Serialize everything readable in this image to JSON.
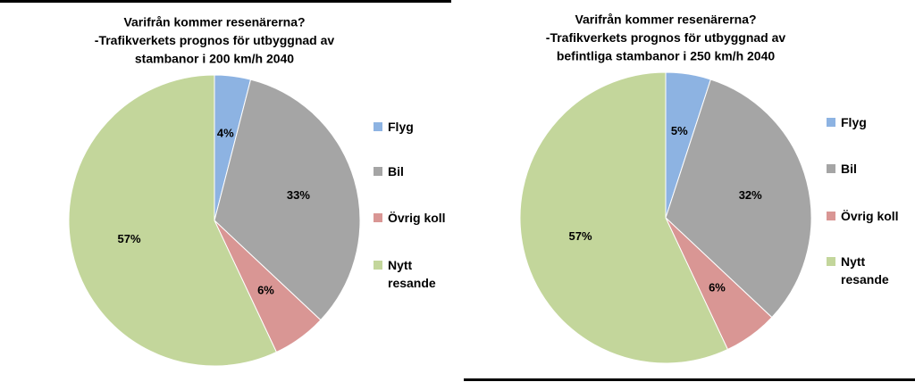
{
  "chart_data": [
    {
      "type": "pie",
      "title": [
        "Varifrån kommer resenärerna?",
        "-Trafikverkets prognos för utbyggnad av",
        "stambanor i 200 km/h 2040"
      ],
      "categories": [
        "Flyg",
        "Bil",
        "Övrig koll",
        "Nytt resande"
      ],
      "values": [
        4,
        33,
        6,
        57
      ],
      "value_labels": [
        "4%",
        "33%",
        "6%",
        "57%"
      ],
      "colors": [
        "#8db3e2",
        "#a5a5a5",
        "#d99694",
        "#c3d69b"
      ],
      "legend": "right"
    },
    {
      "type": "pie",
      "title": [
        "Varifrån kommer resenärerna?",
        "-Trafikverkets prognos för utbyggnad av",
        "befintliga stambanor i 250 km/h 2040"
      ],
      "categories": [
        "Flyg",
        "Bil",
        "Övrig koll",
        "Nytt resande"
      ],
      "values": [
        5,
        32,
        6,
        57
      ],
      "value_labels": [
        "5%",
        "32%",
        "6%",
        "57%"
      ],
      "colors": [
        "#8db3e2",
        "#a5a5a5",
        "#d99694",
        "#c3d69b"
      ],
      "legend": "right"
    }
  ]
}
